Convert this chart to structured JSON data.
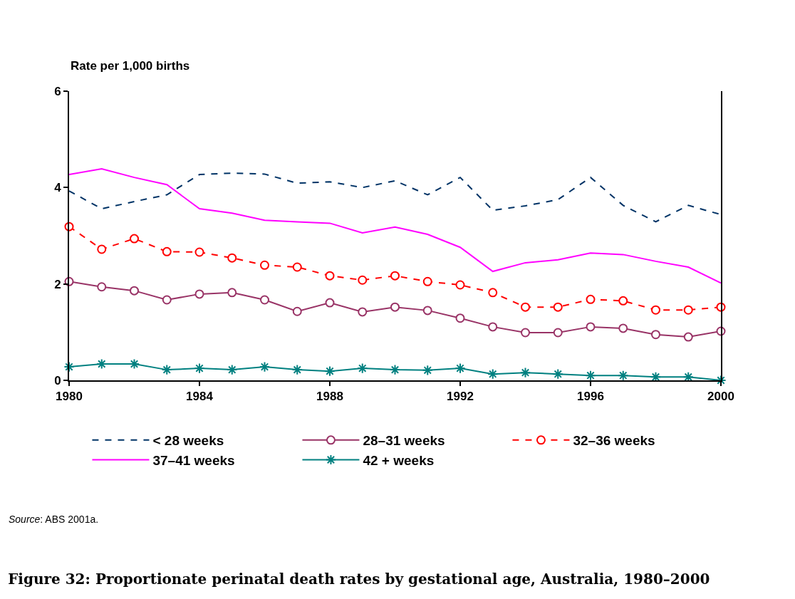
{
  "chart_data": {
    "type": "line",
    "title": "Figure 32: Proportionate perinatal death rates by gestational age, Australia, 1980–2000",
    "ylabel": "Rate per 1,000 births",
    "x": [
      1980,
      1981,
      1982,
      1983,
      1984,
      1985,
      1986,
      1987,
      1988,
      1989,
      1990,
      1991,
      1992,
      1993,
      1994,
      1995,
      1996,
      1997,
      1998,
      1999,
      2000
    ],
    "xlim": [
      1980,
      2000
    ],
    "xticks": [
      1980,
      1984,
      1988,
      1992,
      1996,
      2000
    ],
    "ylim": [
      0,
      6
    ],
    "yticks": [
      0,
      2,
      4,
      6
    ],
    "legend": "bottom",
    "series": [
      {
        "name": "< 28 weeks",
        "color": "#003366",
        "line_style": "dashed",
        "marker": "none",
        "values": [
          3.93,
          3.56,
          3.71,
          3.85,
          4.27,
          4.3,
          4.28,
          4.09,
          4.12,
          4.0,
          4.14,
          3.85,
          4.21,
          3.53,
          3.62,
          3.75,
          4.21,
          3.63,
          3.29,
          3.63,
          3.44
        ]
      },
      {
        "name": "28–31 weeks",
        "color": "#993366",
        "line_style": "solid",
        "marker": "circle",
        "values": [
          2.05,
          1.94,
          1.86,
          1.67,
          1.79,
          1.82,
          1.67,
          1.43,
          1.61,
          1.42,
          1.52,
          1.45,
          1.29,
          1.11,
          0.99,
          0.99,
          1.11,
          1.08,
          0.95,
          0.9,
          1.02
        ]
      },
      {
        "name": "32–36 weeks",
        "color": "#ff0000",
        "line_style": "dashed",
        "marker": "circle",
        "values": [
          3.19,
          2.72,
          2.94,
          2.67,
          2.66,
          2.54,
          2.39,
          2.35,
          2.17,
          2.08,
          2.17,
          2.05,
          1.98,
          1.82,
          1.52,
          1.52,
          1.68,
          1.65,
          1.46,
          1.46,
          1.52
        ]
      },
      {
        "name": "37–41 weeks",
        "color": "#ff00ff",
        "line_style": "solid",
        "marker": "none",
        "values": [
          4.27,
          4.39,
          4.21,
          4.06,
          3.56,
          3.47,
          3.32,
          3.29,
          3.26,
          3.06,
          3.18,
          3.03,
          2.76,
          2.26,
          2.44,
          2.5,
          2.64,
          2.61,
          2.47,
          2.35,
          2.02
        ]
      },
      {
        "name": "42 + weeks",
        "color": "#008080",
        "line_style": "solid",
        "marker": "cross",
        "values": [
          0.28,
          0.34,
          0.34,
          0.22,
          0.25,
          0.22,
          0.28,
          0.22,
          0.19,
          0.25,
          0.22,
          0.21,
          0.25,
          0.13,
          0.16,
          0.13,
          0.1,
          0.1,
          0.07,
          0.07,
          0
        ]
      }
    ],
    "annotations": [
      "Source: ABS 2001a."
    ]
  }
}
